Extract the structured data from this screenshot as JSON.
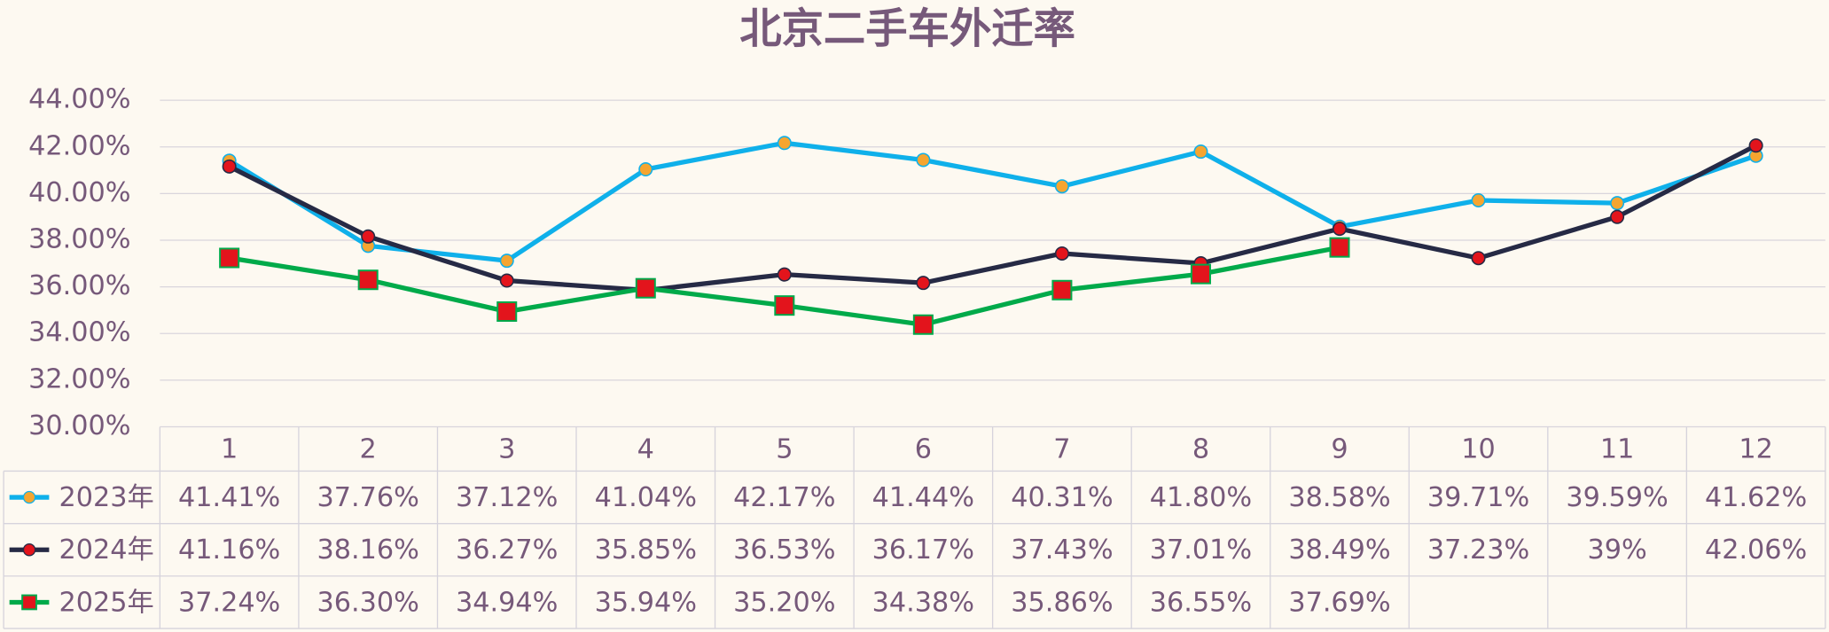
{
  "chart_data": {
    "type": "line",
    "title": "北京二手车外迁率",
    "categories": [
      "1",
      "2",
      "3",
      "4",
      "5",
      "6",
      "7",
      "8",
      "9",
      "10",
      "11",
      "12"
    ],
    "ylim": [
      30,
      44
    ],
    "yticks": [
      {
        "value": 30,
        "label": "30.00%"
      },
      {
        "value": 32,
        "label": "32.00%"
      },
      {
        "value": 34,
        "label": "34.00%"
      },
      {
        "value": 36,
        "label": "36.00%"
      },
      {
        "value": 38,
        "label": "38.00%"
      },
      {
        "value": 40,
        "label": "40.00%"
      },
      {
        "value": 42,
        "label": "42.00%"
      },
      {
        "value": 44,
        "label": "44.00%"
      }
    ],
    "grid": true,
    "series": [
      {
        "name": "2023年",
        "color": "#0fb0ea",
        "marker": "circle",
        "marker_color": "#f5a530",
        "values": [
          41.41,
          37.76,
          37.12,
          41.04,
          42.17,
          41.44,
          40.31,
          41.8,
          38.58,
          39.71,
          39.59,
          41.62
        ],
        "value_labels": [
          "41.41%",
          "37.76%",
          "37.12%",
          "41.04%",
          "42.17%",
          "41.44%",
          "40.31%",
          "41.80%",
          "38.58%",
          "39.71%",
          "39.59%",
          "41.62%"
        ]
      },
      {
        "name": "2024年",
        "color": "#262a45",
        "marker": "circle",
        "marker_color": "#e3141c",
        "values": [
          41.16,
          38.16,
          36.27,
          35.85,
          36.53,
          36.17,
          37.43,
          37.01,
          38.49,
          37.23,
          39,
          42.06
        ],
        "value_labels": [
          "41.16%",
          "38.16%",
          "36.27%",
          "35.85%",
          "36.53%",
          "36.17%",
          "37.43%",
          "37.01%",
          "38.49%",
          "37.23%",
          "39%",
          "42.06%"
        ]
      },
      {
        "name": "2025年",
        "color": "#00aa4a",
        "marker": "square",
        "marker_color": "#e3141c",
        "values": [
          37.24,
          36.3,
          34.94,
          35.94,
          35.2,
          34.38,
          35.86,
          36.55,
          37.69,
          null,
          null,
          null
        ],
        "value_labels": [
          "37.24%",
          "36.30%",
          "34.94%",
          "35.94%",
          "35.20%",
          "34.38%",
          "35.86%",
          "36.55%",
          "37.69%",
          null,
          null,
          null
        ]
      }
    ]
  }
}
